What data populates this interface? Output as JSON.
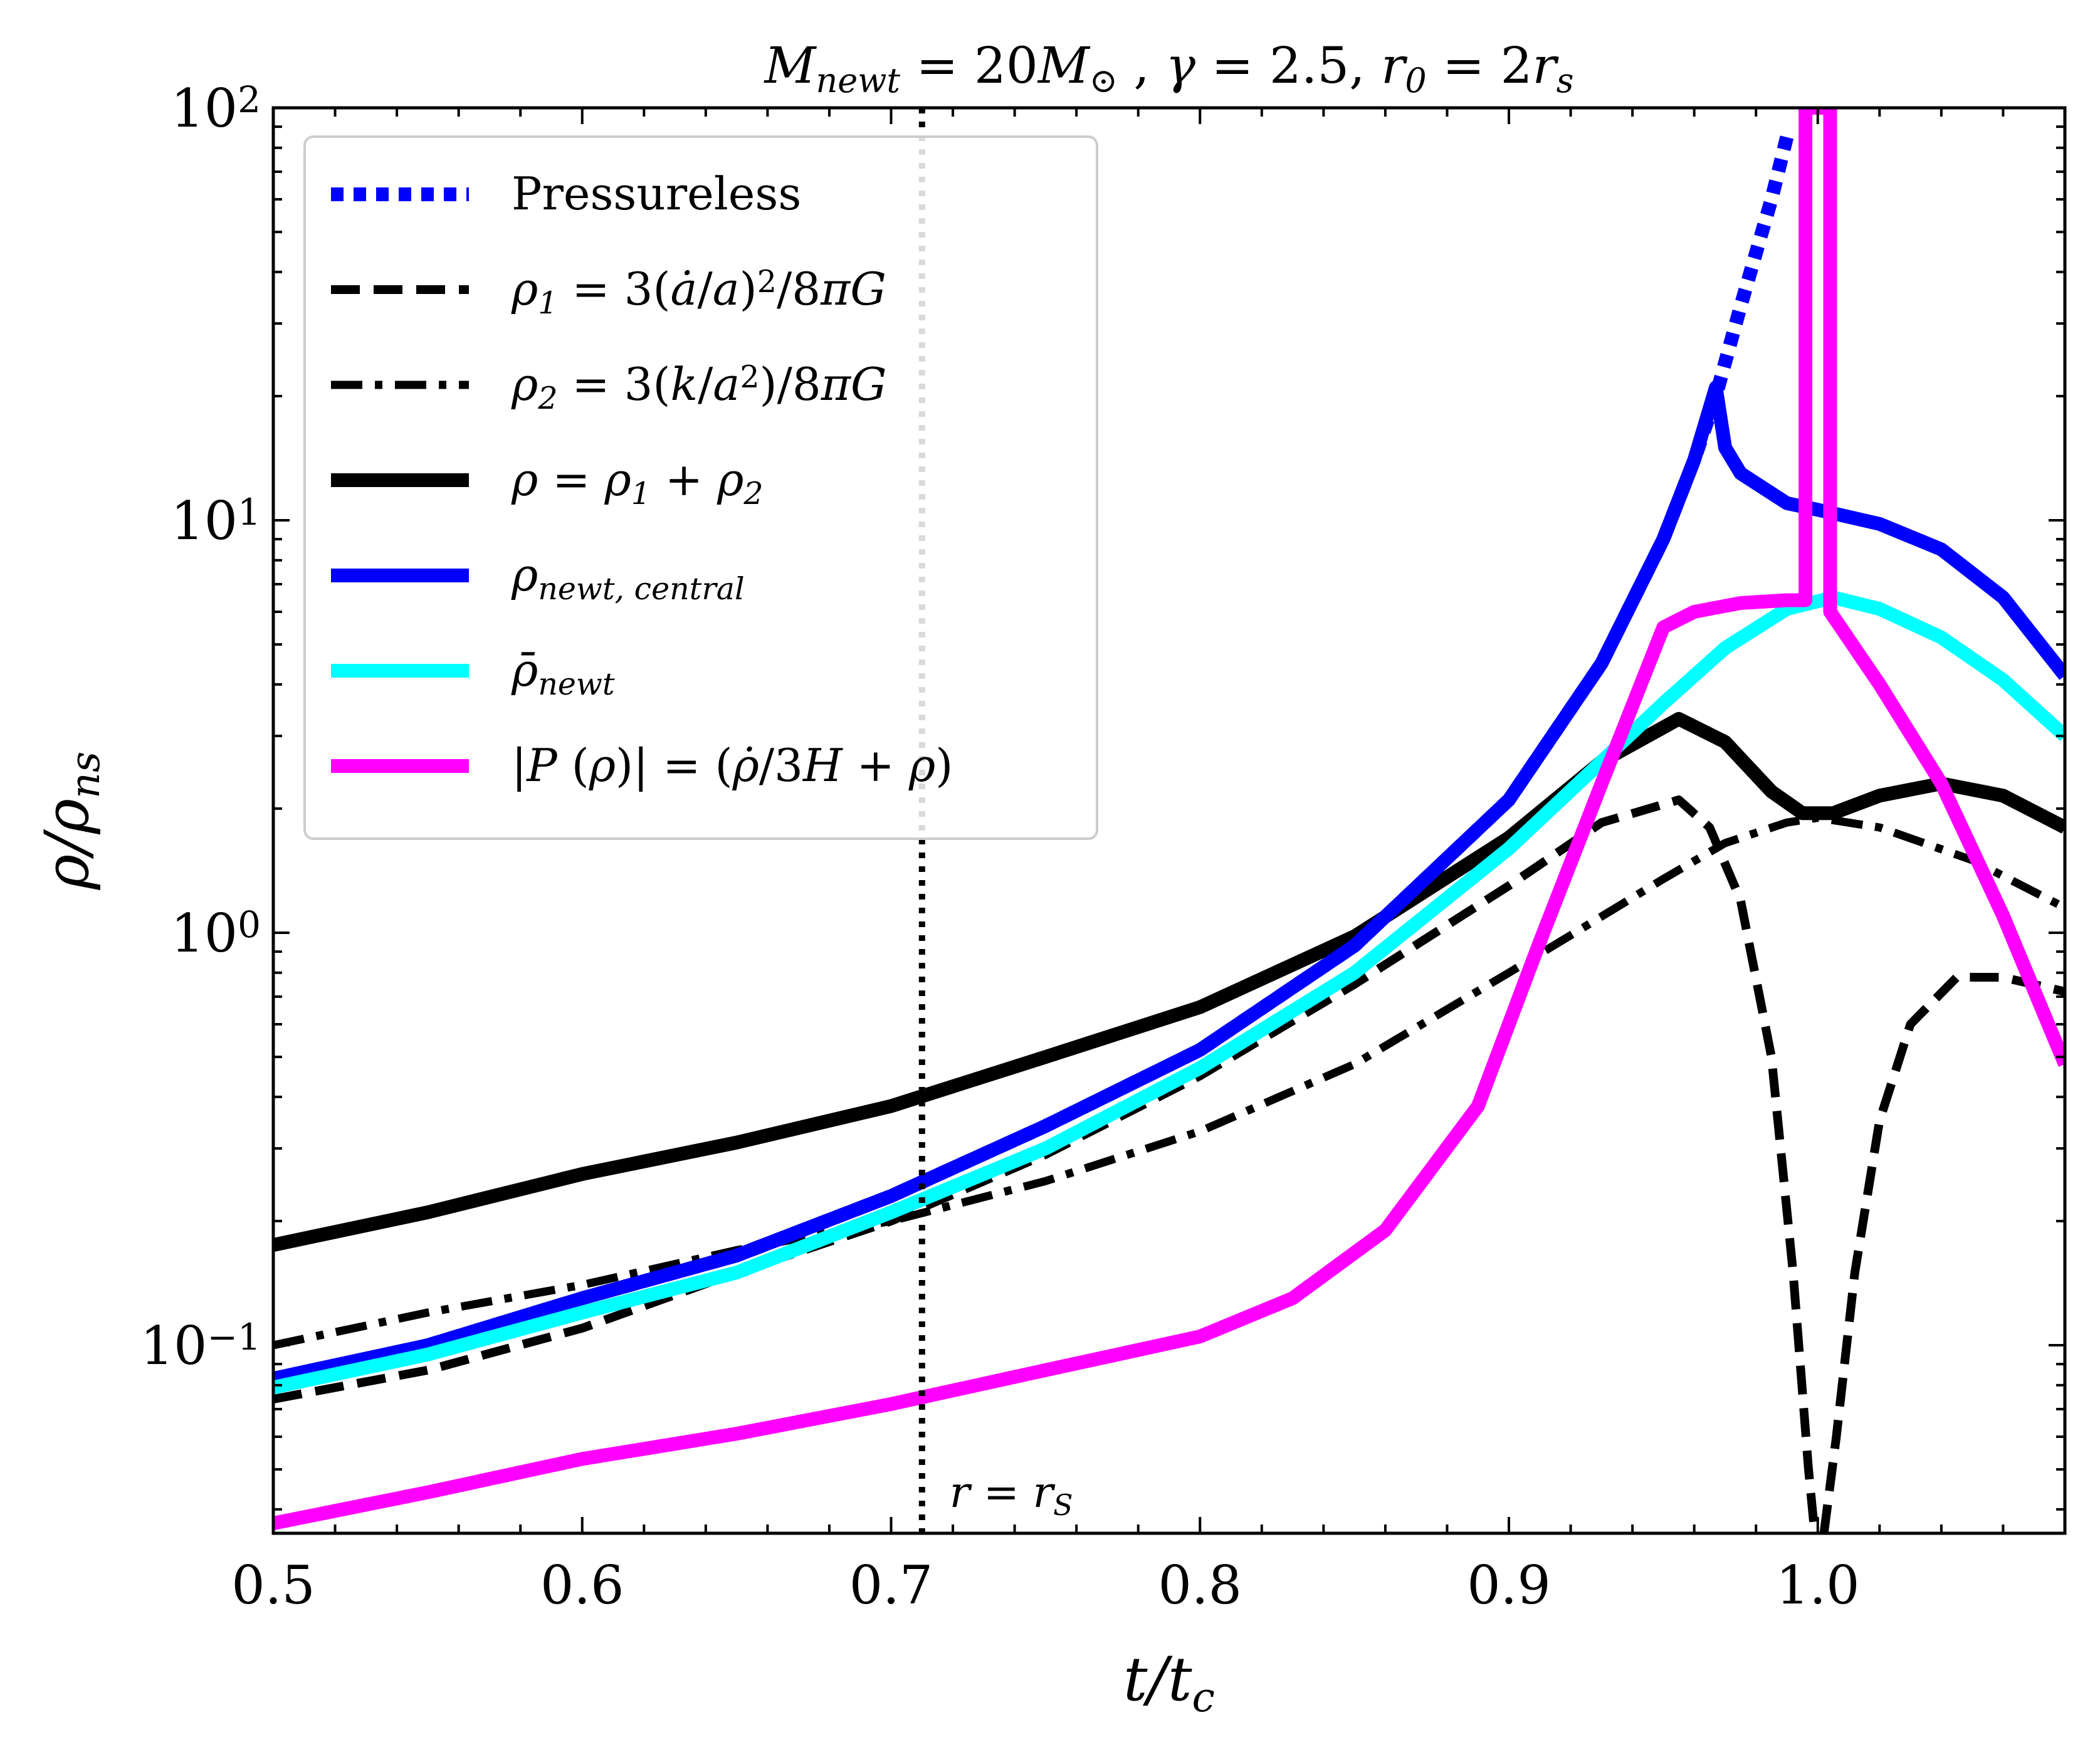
{
  "chart_data": {
    "type": "line",
    "title": "M_newt = 20M_⊙ , γ = 2.5, r_0 = 2r_s",
    "title_parts": [
      {
        "t": "M",
        "style": "italic"
      },
      {
        "t": "newt",
        "style": "sub"
      },
      {
        "t": " = 20",
        "style": "normal"
      },
      {
        "t": "M",
        "style": "italic"
      },
      {
        "t": "⊙",
        "style": "sub"
      },
      {
        "t": " , ",
        "style": "normal"
      },
      {
        "t": "γ",
        "style": "italic"
      },
      {
        "t": " = 2.5, ",
        "style": "normal"
      },
      {
        "t": "r",
        "style": "italic"
      },
      {
        "t": "0",
        "style": "sub"
      },
      {
        "t": " = 2",
        "style": "normal"
      },
      {
        "t": "r",
        "style": "italic"
      },
      {
        "t": "s",
        "style": "sub"
      }
    ],
    "xlabel": "t/t_c",
    "ylabel": "ρ/ρ_ns",
    "xlim": [
      0.5,
      1.08
    ],
    "ylim": [
      0.035,
      100
    ],
    "yscale": "log",
    "grid": false,
    "legend_position": "upper-left",
    "x_ticks": [
      {
        "value": 0.5,
        "label": "0.5"
      },
      {
        "value": 0.6,
        "label": "0.6"
      },
      {
        "value": 0.7,
        "label": "0.7"
      },
      {
        "value": 0.8,
        "label": "0.8"
      },
      {
        "value": 0.9,
        "label": "0.9"
      },
      {
        "value": 1.0,
        "label": "1.0"
      }
    ],
    "y_ticks": [
      {
        "value": 0.1,
        "base": "10",
        "exp": "−1"
      },
      {
        "value": 1,
        "base": "10",
        "exp": "0"
      },
      {
        "value": 10,
        "base": "10",
        "exp": "1"
      },
      {
        "value": 100,
        "base": "10",
        "exp": "2"
      }
    ],
    "vline": {
      "x": 0.71,
      "label": "r = r_S",
      "color": "#000000",
      "light_color": "#c8c8c8"
    },
    "series": [
      {
        "name": "Pressureless",
        "legend_label": "Pressureless",
        "color": "#0000ff",
        "style": "dotted",
        "points": [
          [
            0.5,
            0.081
          ],
          [
            0.55,
            0.1
          ],
          [
            0.6,
            0.13
          ],
          [
            0.65,
            0.165
          ],
          [
            0.7,
            0.23
          ],
          [
            0.75,
            0.34
          ],
          [
            0.8,
            0.52
          ],
          [
            0.85,
            0.93
          ],
          [
            0.9,
            2.1
          ],
          [
            0.93,
            4.5
          ],
          [
            0.95,
            9.0
          ],
          [
            0.96,
            14.0
          ],
          [
            0.967,
            20.0
          ],
          [
            0.975,
            33.0
          ],
          [
            0.985,
            60.0
          ],
          [
            0.99,
            85.0
          ]
        ]
      },
      {
        "name": "rho1",
        "legend_label": "ρ1 = 3(ȧ/a)²/8πG",
        "color": "#000000",
        "style": "dashed",
        "points": [
          [
            0.5,
            0.074
          ],
          [
            0.55,
            0.087
          ],
          [
            0.6,
            0.11
          ],
          [
            0.65,
            0.15
          ],
          [
            0.7,
            0.2
          ],
          [
            0.75,
            0.29
          ],
          [
            0.8,
            0.45
          ],
          [
            0.85,
            0.75
          ],
          [
            0.9,
            1.3
          ],
          [
            0.93,
            1.85
          ],
          [
            0.955,
            2.1
          ],
          [
            0.965,
            1.8
          ],
          [
            0.975,
            1.2
          ],
          [
            0.985,
            0.5
          ],
          [
            0.992,
            0.15
          ],
          [
            0.997,
            0.05
          ],
          [
            0.999,
            0.035
          ]
        ]
      },
      {
        "name": "rho1-b",
        "legend_label": "",
        "color": "#000000",
        "style": "dashed",
        "points": [
          [
            1.002,
            0.035
          ],
          [
            1.006,
            0.06
          ],
          [
            1.012,
            0.15
          ],
          [
            1.02,
            0.35
          ],
          [
            1.03,
            0.6
          ],
          [
            1.045,
            0.78
          ],
          [
            1.06,
            0.78
          ],
          [
            1.08,
            0.72
          ]
        ]
      },
      {
        "name": "rho2",
        "legend_label": "ρ2 = 3(k/a²)/8πG",
        "color": "#000000",
        "style": "dashdot",
        "points": [
          [
            0.5,
            0.1
          ],
          [
            0.55,
            0.12
          ],
          [
            0.6,
            0.14
          ],
          [
            0.65,
            0.17
          ],
          [
            0.7,
            0.2
          ],
          [
            0.75,
            0.25
          ],
          [
            0.8,
            0.33
          ],
          [
            0.85,
            0.48
          ],
          [
            0.9,
            0.8
          ],
          [
            0.95,
            1.35
          ],
          [
            0.97,
            1.65
          ],
          [
            0.99,
            1.85
          ],
          [
            1.0,
            1.9
          ],
          [
            1.02,
            1.8
          ],
          [
            1.05,
            1.5
          ],
          [
            1.08,
            1.15
          ]
        ]
      },
      {
        "name": "rho",
        "legend_label": "ρ = ρ1 + ρ2",
        "color": "#000000",
        "style": "solid",
        "points": [
          [
            0.5,
            0.175
          ],
          [
            0.55,
            0.21
          ],
          [
            0.6,
            0.26
          ],
          [
            0.65,
            0.31
          ],
          [
            0.7,
            0.38
          ],
          [
            0.75,
            0.5
          ],
          [
            0.8,
            0.66
          ],
          [
            0.85,
            0.98
          ],
          [
            0.9,
            1.7
          ],
          [
            0.93,
            2.6
          ],
          [
            0.955,
            3.3
          ],
          [
            0.97,
            2.9
          ],
          [
            0.985,
            2.2
          ],
          [
            0.995,
            1.95
          ],
          [
            1.005,
            1.95
          ],
          [
            1.02,
            2.15
          ],
          [
            1.04,
            2.3
          ],
          [
            1.06,
            2.15
          ],
          [
            1.08,
            1.8
          ]
        ]
      },
      {
        "name": "rho_newt_central",
        "legend_label": "ρnewt, central",
        "color": "#0000ff",
        "style": "solid",
        "points": [
          [
            0.5,
            0.083
          ],
          [
            0.55,
            0.1
          ],
          [
            0.6,
            0.13
          ],
          [
            0.65,
            0.165
          ],
          [
            0.7,
            0.23
          ],
          [
            0.75,
            0.34
          ],
          [
            0.8,
            0.52
          ],
          [
            0.85,
            0.93
          ],
          [
            0.9,
            2.1
          ],
          [
            0.93,
            4.5
          ],
          [
            0.95,
            9.0
          ],
          [
            0.96,
            14.0
          ],
          [
            0.967,
            21.0
          ],
          [
            0.97,
            15.0
          ],
          [
            0.975,
            13.0
          ],
          [
            0.99,
            11.0
          ],
          [
            1.0,
            10.6
          ],
          [
            1.02,
            9.8
          ],
          [
            1.04,
            8.5
          ],
          [
            1.06,
            6.5
          ],
          [
            1.08,
            4.2
          ]
        ]
      },
      {
        "name": "rho_bar_newt",
        "legend_label": "ρ̄newt",
        "color": "#00ffff",
        "style": "solid",
        "points": [
          [
            0.5,
            0.079
          ],
          [
            0.55,
            0.095
          ],
          [
            0.6,
            0.12
          ],
          [
            0.65,
            0.15
          ],
          [
            0.7,
            0.21
          ],
          [
            0.75,
            0.3
          ],
          [
            0.8,
            0.47
          ],
          [
            0.85,
            0.8
          ],
          [
            0.9,
            1.6
          ],
          [
            0.93,
            2.6
          ],
          [
            0.95,
            3.6
          ],
          [
            0.97,
            4.9
          ],
          [
            0.99,
            6.1
          ],
          [
            1.005,
            6.5
          ],
          [
            1.02,
            6.1
          ],
          [
            1.04,
            5.2
          ],
          [
            1.06,
            4.1
          ],
          [
            1.08,
            3.0
          ]
        ]
      },
      {
        "name": "P_rho",
        "legend_label": "|P(ρ)| = (ρ̇/3H + ρ)",
        "color": "#ff00ff",
        "style": "solid",
        "points": [
          [
            0.5,
            0.037
          ],
          [
            0.55,
            0.044
          ],
          [
            0.6,
            0.053
          ],
          [
            0.65,
            0.061
          ],
          [
            0.7,
            0.072
          ],
          [
            0.75,
            0.087
          ],
          [
            0.8,
            0.105
          ],
          [
            0.83,
            0.13
          ],
          [
            0.86,
            0.19
          ],
          [
            0.89,
            0.38
          ],
          [
            0.91,
            0.95
          ],
          [
            0.93,
            2.3
          ],
          [
            0.95,
            5.5
          ],
          [
            0.96,
            6.0
          ],
          [
            0.975,
            6.3
          ],
          [
            0.99,
            6.4
          ],
          [
            0.996,
            6.4
          ],
          [
            0.996,
            100
          ],
          [
            1.004,
            100
          ],
          [
            1.004,
            6.0
          ],
          [
            1.02,
            4.0
          ],
          [
            1.04,
            2.3
          ],
          [
            1.06,
            1.1
          ],
          [
            1.08,
            0.48
          ]
        ]
      }
    ],
    "legend": [
      {
        "series": "Pressureless",
        "parts": [
          {
            "t": "Pressureless",
            "style": "normal"
          }
        ]
      },
      {
        "series": "rho1",
        "parts": [
          {
            "t": "ρ",
            "style": "italic"
          },
          {
            "t": "1",
            "style": "sub"
          },
          {
            "t": " = 3(",
            "style": "normal"
          },
          {
            "t": "ȧ",
            "style": "italic"
          },
          {
            "t": "/",
            "style": "normal"
          },
          {
            "t": "a",
            "style": "italic"
          },
          {
            "t": ")",
            "style": "normal"
          },
          {
            "t": "2",
            "style": "sup"
          },
          {
            "t": "/8",
            "style": "normal"
          },
          {
            "t": "πG",
            "style": "italic"
          }
        ]
      },
      {
        "series": "rho2",
        "parts": [
          {
            "t": "ρ",
            "style": "italic"
          },
          {
            "t": "2",
            "style": "sub"
          },
          {
            "t": " = 3(",
            "style": "normal"
          },
          {
            "t": "k",
            "style": "italic"
          },
          {
            "t": "/",
            "style": "normal"
          },
          {
            "t": "a",
            "style": "italic"
          },
          {
            "t": "2",
            "style": "sup"
          },
          {
            "t": ")/8",
            "style": "normal"
          },
          {
            "t": "πG",
            "style": "italic"
          }
        ]
      },
      {
        "series": "rho",
        "parts": [
          {
            "t": "ρ",
            "style": "italic"
          },
          {
            "t": " = ",
            "style": "normal"
          },
          {
            "t": "ρ",
            "style": "italic"
          },
          {
            "t": "1",
            "style": "sub"
          },
          {
            "t": " + ",
            "style": "normal"
          },
          {
            "t": "ρ",
            "style": "italic"
          },
          {
            "t": "2",
            "style": "sub"
          }
        ]
      },
      {
        "series": "rho_newt_central",
        "parts": [
          {
            "t": "ρ",
            "style": "italic"
          },
          {
            "t": "newt, central",
            "style": "sub"
          }
        ]
      },
      {
        "series": "rho_bar_newt",
        "parts": [
          {
            "t": "ρ̄",
            "style": "italic"
          },
          {
            "t": "newt",
            "style": "sub"
          }
        ]
      },
      {
        "series": "P_rho",
        "parts": [
          {
            "t": "|",
            "style": "normal"
          },
          {
            "t": "P",
            "style": "italic"
          },
          {
            "t": " (",
            "style": "normal"
          },
          {
            "t": "ρ",
            "style": "italic"
          },
          {
            "t": ")| = (",
            "style": "normal"
          },
          {
            "t": "ρ̇",
            "style": "italic"
          },
          {
            "t": "/3",
            "style": "normal"
          },
          {
            "t": "H",
            "style": "italic"
          },
          {
            "t": " + ",
            "style": "normal"
          },
          {
            "t": "ρ",
            "style": "italic"
          },
          {
            "t": ")",
            "style": "normal"
          }
        ]
      }
    ]
  }
}
